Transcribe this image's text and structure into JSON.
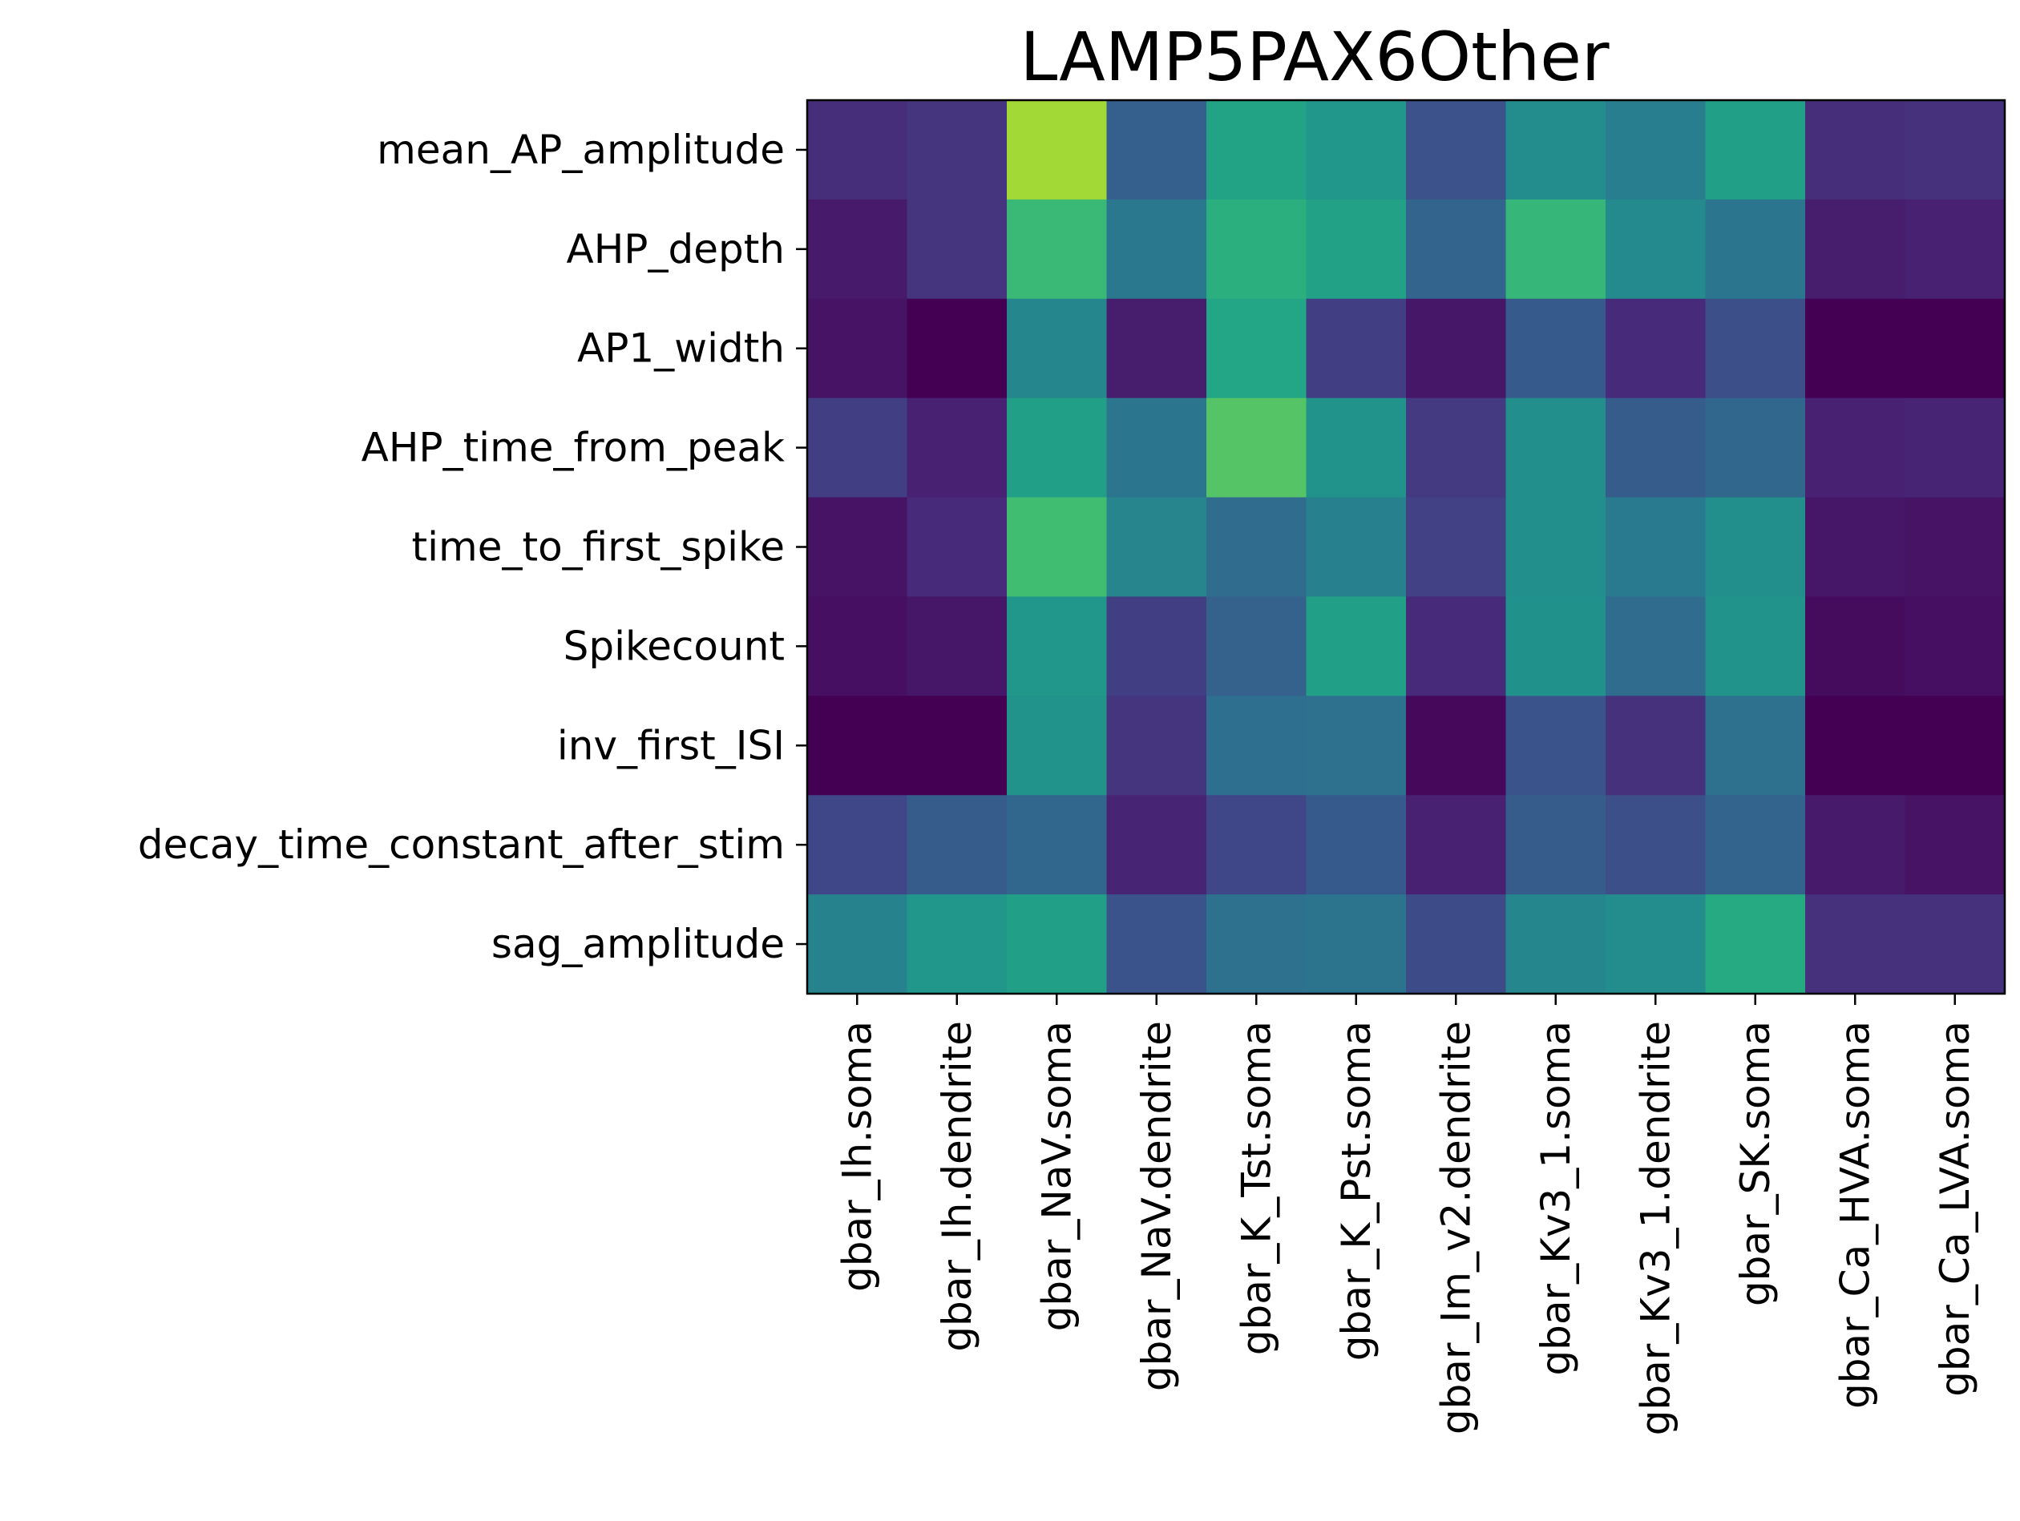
{
  "chart_data": {
    "type": "heatmap",
    "title": "LAMP5PAX6Other",
    "xlabel": "",
    "ylabel": "",
    "colormap": "viridis",
    "rows": [
      "mean_AP_amplitude",
      "AHP_depth",
      "AP1_width",
      "AHP_time_from_peak",
      "time_to_first_spike",
      "Spikecount",
      "inv_first_ISI",
      "decay_time_constant_after_stim",
      "sag_amplitude"
    ],
    "columns": [
      "gbar_Ih.soma",
      "gbar_Ih.dendrite",
      "gbar_NaV.soma",
      "gbar_NaV.dendrite",
      "gbar_K_Tst.soma",
      "gbar_K_Pst.soma",
      "gbar_Im_v2.dendrite",
      "gbar_Kv3_1.soma",
      "gbar_Kv3_1.dendrite",
      "gbar_SK.soma",
      "gbar_Ca_HVA.soma",
      "gbar_Ca_LVA.soma"
    ],
    "values": [
      [
        0.13,
        0.15,
        0.86,
        0.3,
        0.58,
        0.52,
        0.25,
        0.48,
        0.42,
        0.56,
        0.13,
        0.14
      ],
      [
        0.07,
        0.15,
        0.67,
        0.4,
        0.63,
        0.57,
        0.32,
        0.66,
        0.47,
        0.39,
        0.08,
        0.09
      ],
      [
        0.05,
        0.0,
        0.46,
        0.08,
        0.59,
        0.18,
        0.06,
        0.28,
        0.12,
        0.24,
        0.0,
        0.0
      ],
      [
        0.18,
        0.09,
        0.56,
        0.39,
        0.73,
        0.51,
        0.17,
        0.49,
        0.29,
        0.33,
        0.09,
        0.1
      ],
      [
        0.05,
        0.12,
        0.69,
        0.45,
        0.35,
        0.43,
        0.19,
        0.49,
        0.41,
        0.49,
        0.06,
        0.05
      ],
      [
        0.04,
        0.06,
        0.52,
        0.18,
        0.31,
        0.56,
        0.12,
        0.5,
        0.35,
        0.51,
        0.03,
        0.04
      ],
      [
        0.0,
        0.0,
        0.51,
        0.15,
        0.36,
        0.37,
        0.02,
        0.26,
        0.14,
        0.37,
        0.0,
        0.0
      ],
      [
        0.21,
        0.29,
        0.33,
        0.1,
        0.21,
        0.28,
        0.09,
        0.29,
        0.24,
        0.32,
        0.07,
        0.05
      ],
      [
        0.44,
        0.52,
        0.56,
        0.26,
        0.37,
        0.38,
        0.23,
        0.46,
        0.48,
        0.61,
        0.14,
        0.14
      ]
    ]
  }
}
